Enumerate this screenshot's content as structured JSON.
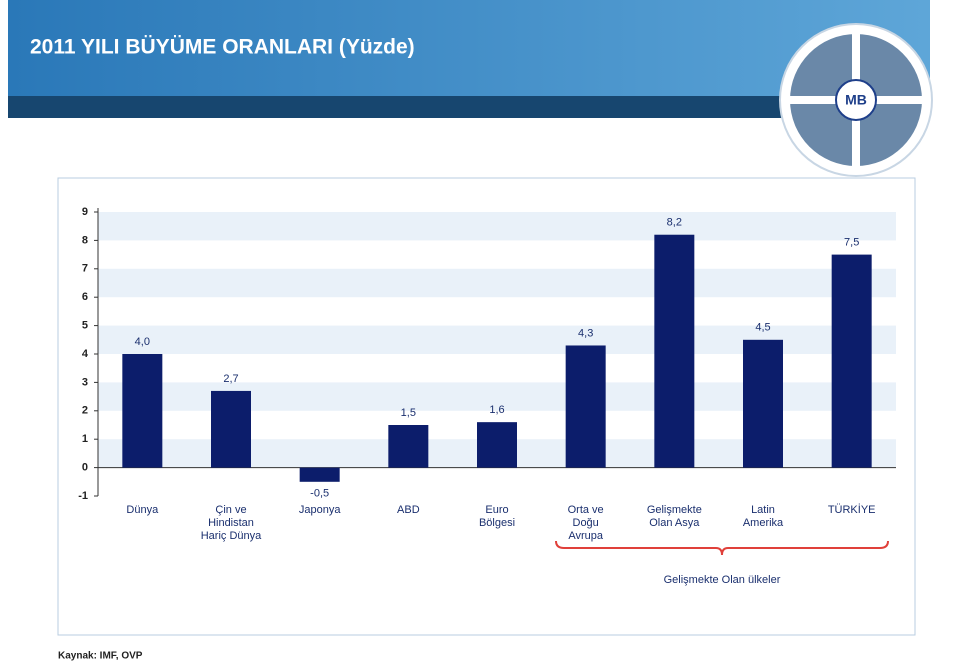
{
  "header": {
    "title": "2011 YILI BÜYÜME ORANLARI (Yüzde)",
    "logo_text": "MB"
  },
  "chart_data": {
    "type": "bar",
    "categories": [
      "Dünya",
      "Çin ve\nHindistan\nHariç Dünya",
      "Japonya",
      "ABD",
      "Euro\nBölgesi",
      "Orta ve\nDoğu\nAvrupa",
      "Gelişmekte\nOlan Asya",
      "Latin\nAmerika",
      "TÜRKİYE"
    ],
    "values": [
      4.0,
      2.7,
      -0.5,
      1.5,
      1.6,
      4.3,
      8.2,
      4.5,
      7.5
    ],
    "value_labels": [
      "4,0",
      "2,7",
      "-0,5",
      "1,5",
      "1,6",
      "4,3",
      "8,2",
      "4,5",
      "7,5"
    ],
    "color": "#0c1d6b",
    "ylim": [
      -1,
      9
    ],
    "yticks": [
      -1,
      0,
      1,
      2,
      3,
      4,
      5,
      6,
      7,
      8,
      9
    ],
    "group_label": "Gelişmekte Olan ülkeler"
  },
  "footer": {
    "source": "Kaynak: IMF, OVP"
  }
}
